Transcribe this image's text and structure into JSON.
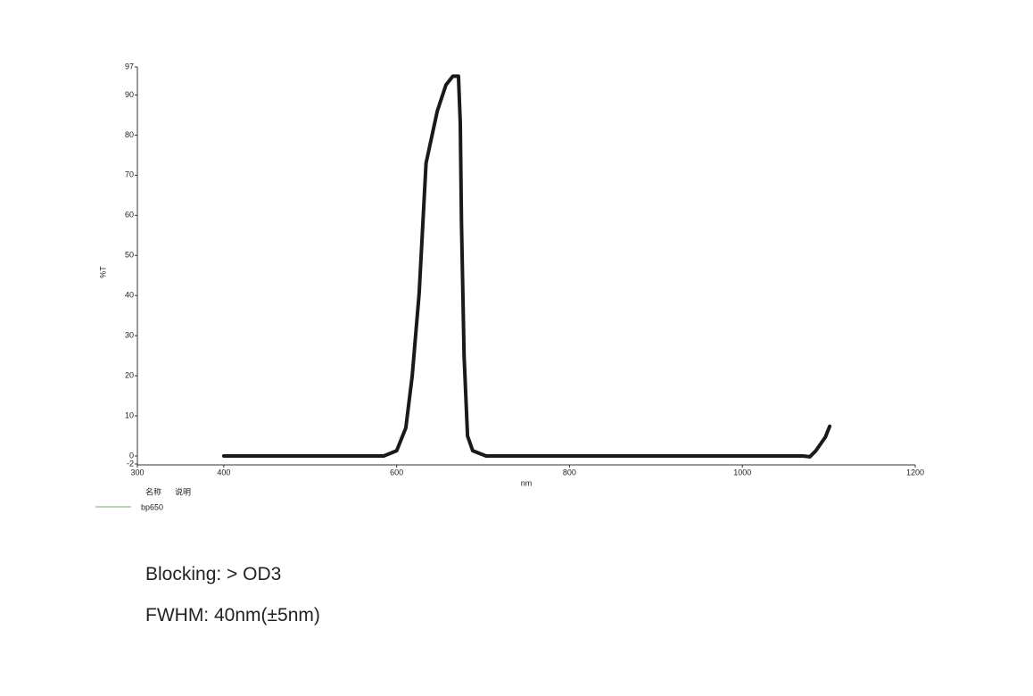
{
  "chart_data": {
    "type": "line",
    "x_label": "nm",
    "y_label": "%T",
    "x": [
      400,
      585,
      600,
      610.6,
      618,
      626,
      634,
      647,
      657,
      665,
      671.5,
      673.6,
      675,
      678,
      682,
      688,
      703.5,
      863,
      1070,
      1078,
      1085,
      1096,
      1101
    ],
    "series": [
      {
        "name": "bp650",
        "color": "#1a1a1a",
        "legend_color": "#5cb85c",
        "values": [
          0,
          0,
          1.3,
          7,
          20,
          40.5,
          73,
          86,
          92.5,
          94.7,
          94.7,
          83,
          58,
          25,
          5,
          1.3,
          0,
          0,
          0,
          -0.2,
          1.3,
          4.7,
          7.4
        ]
      }
    ],
    "xlim": [
      300,
      1200
    ],
    "xticks": [
      300,
      400,
      600,
      800,
      1000,
      1200
    ],
    "ylim": [
      -2,
      97
    ],
    "yticks": [
      -2,
      0,
      10,
      20,
      30,
      40,
      50,
      60,
      70,
      80,
      90,
      97
    ],
    "legend_headers": [
      "名称",
      "说明"
    ]
  },
  "notes": [
    "Blocking:  > OD3",
    "FWHM:  40nm(±5nm)"
  ]
}
